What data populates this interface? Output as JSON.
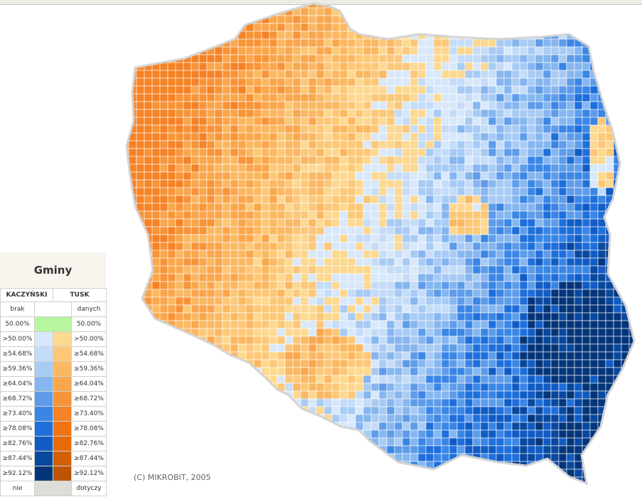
{
  "legend": {
    "title": "Gminy",
    "left_label": "KACZYŃSKI",
    "right_label": "TUSK",
    "no_data_left": "brak",
    "no_data_right": "danych",
    "tie": {
      "left": "50.00%",
      "right": "50.00%",
      "color": "#b8f5a0"
    },
    "rows": [
      {
        "left": ">50.00%",
        "right": ">50.00%",
        "blue": "#d8e8fa",
        "orange": "#fdd890"
      },
      {
        "left": "≥54.68%",
        "right": "≥54.68%",
        "blue": "#c4dcf8",
        "orange": "#fcc878"
      },
      {
        "left": "≥59.36%",
        "right": "≥59.36%",
        "blue": "#a8cbf4",
        "orange": "#fbb862"
      },
      {
        "left": "≥64.04%",
        "right": "≥64.04%",
        "blue": "#86b6f0",
        "orange": "#faa64c"
      },
      {
        "left": "≥68.72%",
        "right": "≥68.72%",
        "blue": "#5e9cea",
        "orange": "#f89438"
      },
      {
        "left": "≥73.40%",
        "right": "≥73.40%",
        "blue": "#3a86e6",
        "orange": "#f68226"
      },
      {
        "left": "≥78.08%",
        "right": "≥78.08%",
        "blue": "#1e6fdc",
        "orange": "#f07414"
      },
      {
        "left": "≥82.76%",
        "right": "≥82.76%",
        "blue": "#105cc4",
        "orange": "#e66a08"
      },
      {
        "left": "≥87.44%",
        "right": "≥87.44%",
        "blue": "#08489e",
        "orange": "#d46006"
      },
      {
        "left": "≥92.12%",
        "right": "≥92.12%",
        "blue": "#04357a",
        "orange": "#bc5404"
      }
    ],
    "na_left": "nie",
    "na_right": "dotyczy",
    "na_color": "#dcdcd8"
  },
  "map": {
    "copyright": "(C) MIKROBIT, 2005",
    "outline_color": "#d9d9d9"
  }
}
